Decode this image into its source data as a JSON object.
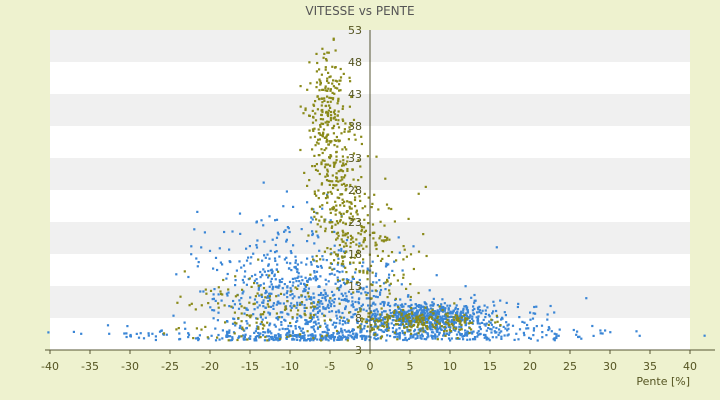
{
  "chart_data": {
    "type": "scatter",
    "title": "VITESSE vs PENTE",
    "xlabel": "Pente [%]",
    "ylabel": "",
    "xlim": [
      -40,
      40
    ],
    "ylim": [
      3,
      53
    ],
    "x_ticks": [
      "-40",
      "-35",
      "-30",
      "-25",
      "-20",
      "-15",
      "-10",
      "-5",
      "0",
      "5",
      "10",
      "15",
      "20",
      "25",
      "30",
      "35",
      "40"
    ],
    "y_ticks": [
      "3",
      "8",
      "13",
      "18",
      "23",
      "28",
      "33",
      "38",
      "43",
      "48",
      "53"
    ],
    "grid": true,
    "legend": "none",
    "colors": {
      "page_background": "#eef2cf",
      "plot_band_light": "#ffffff",
      "plot_band_dark": "#f0f0f0",
      "axis": "#555533",
      "series_blue": "#3a86d6",
      "series_olive": "#8a8a1a"
    },
    "series": [
      {
        "color": "#3a86d6",
        "clusters": [
          {
            "cx": -7,
            "cy": 9,
            "sx": 6,
            "sy": 5,
            "n": 700
          },
          {
            "cx": -12,
            "cy": 15,
            "sx": 5,
            "sy": 6,
            "n": 200
          },
          {
            "cx": 7,
            "cy": 8,
            "sx": 4,
            "sy": 1.2,
            "n": 600
          },
          {
            "cx": 12,
            "cy": 7,
            "sx": 6,
            "sy": 2,
            "n": 150
          },
          {
            "cx": 0,
            "cy": 5.5,
            "sx": 20,
            "sy": 0.5,
            "n": 250
          }
        ]
      },
      {
        "color": "#8a8a1a",
        "clusters": [
          {
            "cx": -5.5,
            "cy": 40,
            "sx": 1.2,
            "sy": 5,
            "n": 220
          },
          {
            "cx": -4,
            "cy": 28,
            "sx": 1.5,
            "sy": 6,
            "n": 200
          },
          {
            "cx": -2,
            "cy": 20,
            "sx": 2,
            "sy": 4,
            "n": 120
          },
          {
            "cx": 3,
            "cy": 15,
            "sx": 2.5,
            "sy": 6,
            "n": 80
          },
          {
            "cx": 6,
            "cy": 7.5,
            "sx": 4,
            "sy": 1,
            "n": 200
          },
          {
            "cx": -12,
            "cy": 9,
            "sx": 6,
            "sy": 3,
            "n": 150
          }
        ]
      }
    ]
  }
}
